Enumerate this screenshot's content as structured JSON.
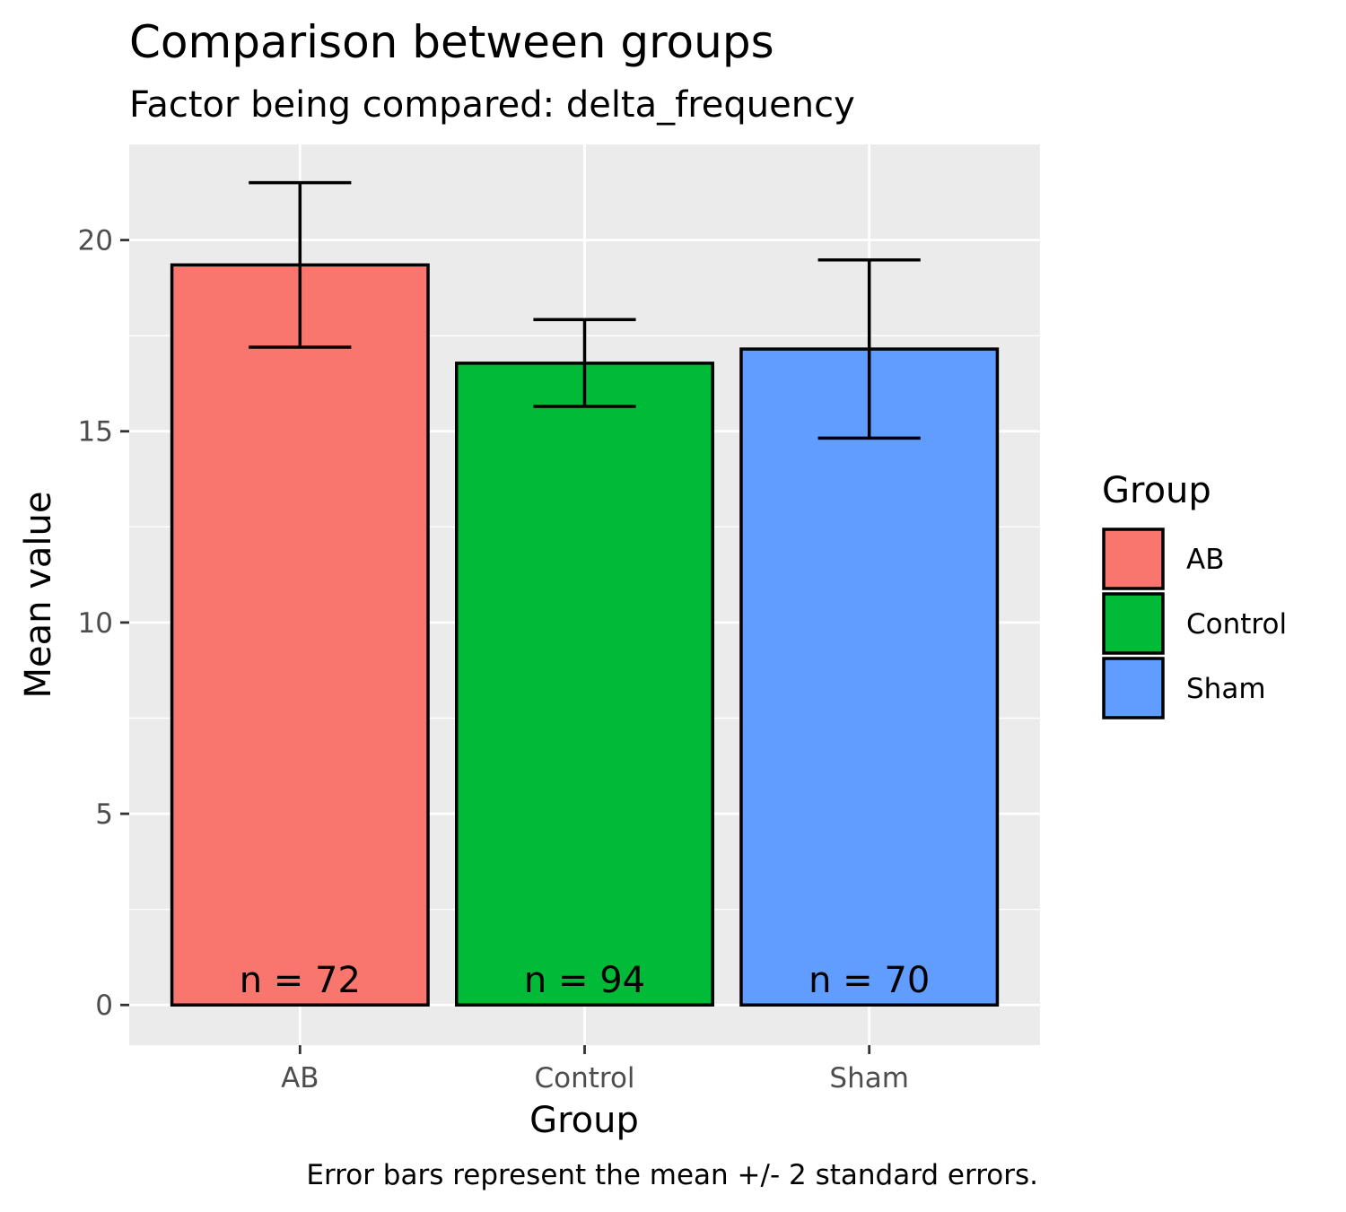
{
  "chart_data": {
    "type": "bar",
    "title": "Comparison between groups",
    "subtitle": "Factor being compared: delta_frequency",
    "xlabel": "Group",
    "ylabel": "Mean value",
    "caption": "Error bars represent the mean +/- 2 standard errors.",
    "categories": [
      "AB",
      "Control",
      "Sham"
    ],
    "values": [
      19.35,
      16.78,
      17.15
    ],
    "error_low": [
      17.2,
      15.65,
      14.82
    ],
    "error_high": [
      21.5,
      17.92,
      19.48
    ],
    "counts": [
      "n = 72",
      "n = 94",
      "n = 70"
    ],
    "colors": [
      "#F8766D",
      "#00BA38",
      "#619CFF"
    ],
    "ylim": [
      -1.05,
      22.5
    ],
    "yticks": [
      0,
      5,
      10,
      15,
      20
    ],
    "yticks_minor": [
      2.5,
      7.5,
      12.5,
      17.5
    ],
    "grid": true,
    "legend": {
      "title": "Group",
      "position": "right",
      "items": [
        "AB",
        "Control",
        "Sham"
      ]
    }
  }
}
